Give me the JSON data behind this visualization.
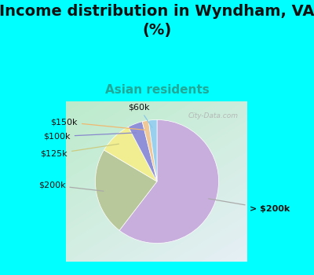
{
  "title": "Income distribution in Wyndham, VA\n(%)",
  "subtitle": "Asian residents",
  "labels": [
    "> $200k",
    "$200k",
    "$125k",
    "$100k",
    "$150k",
    "$60k"
  ],
  "values": [
    55,
    21,
    8,
    3.5,
    1.5,
    2
  ],
  "colors": [
    "#c8aedd",
    "#b8c89a",
    "#f0ee90",
    "#9090d8",
    "#f0c898",
    "#98d0ee"
  ],
  "background_color": "#00ffff",
  "chart_bg_color_tl": "#b8e8c8",
  "chart_bg_color_br": "#e8f0f8",
  "title_fontsize": 14,
  "subtitle_fontsize": 11,
  "subtitle_color": "#20a898",
  "watermark": "City-Data.com",
  "startangle": 90,
  "label_fontsize": 8
}
